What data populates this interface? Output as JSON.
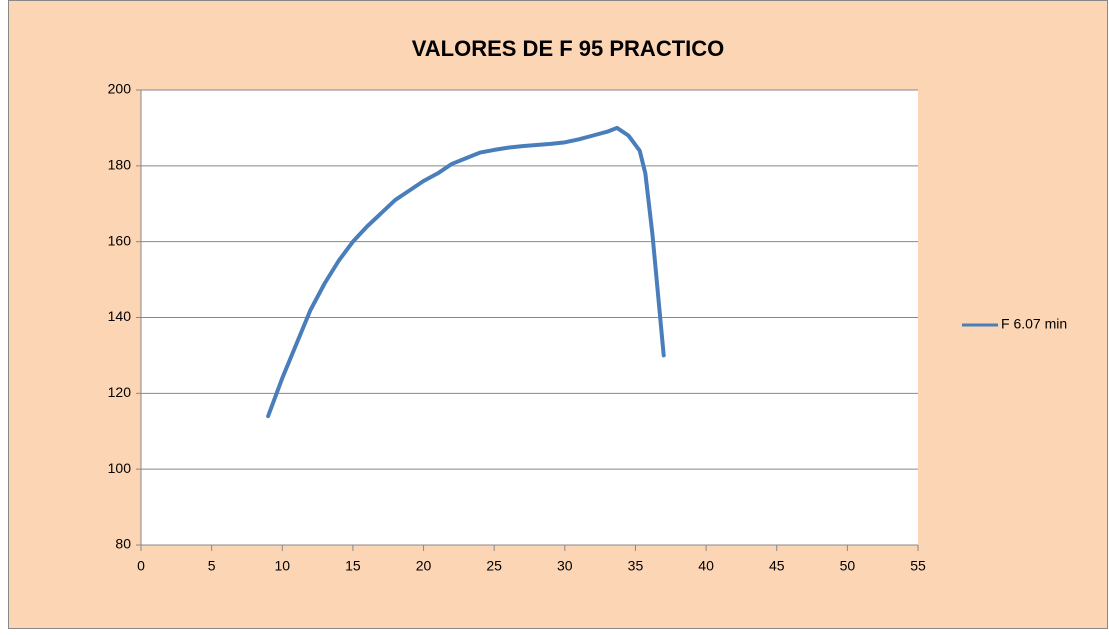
{
  "chart_data": {
    "type": "line",
    "title": "VALORES DE F 95 PRACTICO",
    "xlim": [
      0,
      55
    ],
    "xticks": [
      0,
      5,
      10,
      15,
      20,
      25,
      30,
      35,
      40,
      45,
      50,
      55
    ],
    "ylim": [
      80,
      200
    ],
    "yticks": [
      80,
      100,
      120,
      140,
      160,
      180,
      200
    ],
    "grid": true,
    "legend": "right",
    "series": [
      {
        "name": "F 6.07 min",
        "color": "#4a7ebb",
        "x": [
          9,
          10,
          11,
          12,
          13,
          14,
          15,
          16,
          17,
          18,
          19,
          20,
          21,
          22,
          23,
          24,
          25,
          26,
          27,
          28,
          29,
          30,
          31,
          32,
          33,
          33.7,
          34.5,
          35.3,
          35.7,
          36.2,
          37
        ],
        "values": [
          114,
          124,
          133,
          142,
          149,
          155,
          160,
          164,
          167.5,
          171,
          173.5,
          176,
          178,
          180.5,
          182,
          183.5,
          184.2,
          184.8,
          185.2,
          185.5,
          185.8,
          186.2,
          187,
          188,
          189,
          190,
          188,
          184,
          178,
          162,
          130
        ]
      }
    ]
  }
}
